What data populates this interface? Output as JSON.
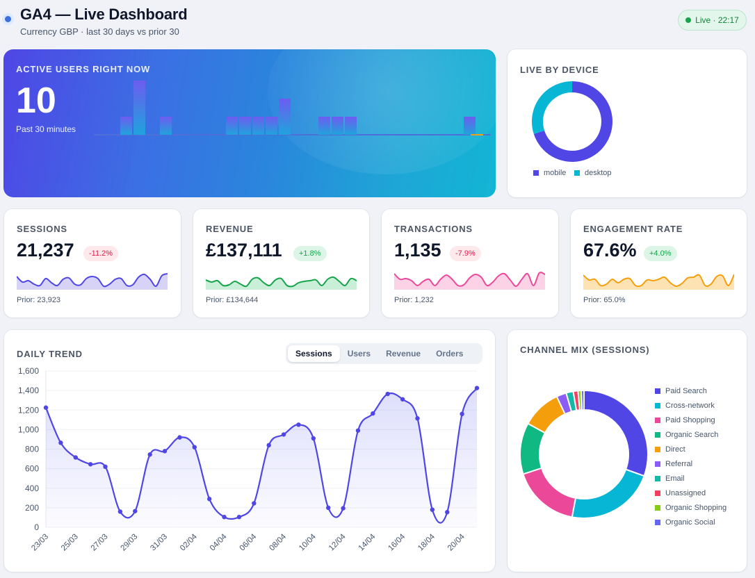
{
  "header": {
    "title": "GA4 — Live Dashboard",
    "subtitle": "Currency GBP · last 30 days vs prior 30",
    "live_badge": "Live · 22:17"
  },
  "hero": {
    "label": "ACTIVE USERS RIGHT NOW",
    "value": "10",
    "sub": "Past 30 minutes",
    "minute_bars": [
      0,
      0,
      1,
      3,
      0,
      1,
      0,
      0,
      0,
      0,
      1,
      1,
      1,
      1,
      2,
      0,
      0,
      1,
      1,
      1,
      0,
      0,
      0,
      0,
      0,
      0,
      0,
      0,
      1,
      0
    ]
  },
  "device": {
    "label": "LIVE BY DEVICE",
    "segments": [
      {
        "name": "mobile",
        "value": 7,
        "color": "#4f46e5"
      },
      {
        "name": "desktop",
        "value": 3,
        "color": "#06b6d4"
      }
    ]
  },
  "kpis": [
    {
      "label": "SESSIONS",
      "value": "21,237",
      "delta": "-11.2%",
      "trend": "neg",
      "prior": "Prior: 23,923",
      "color": "#4f46e5",
      "fill": "#d7d3f7",
      "spark": [
        0.75,
        0.35,
        0.45,
        0.2,
        0.1,
        0.6,
        0.3,
        0.1,
        0.55,
        0.65,
        0.2,
        0.15,
        0.6,
        0.75,
        0.6,
        0.05,
        0.2,
        0.55,
        0.6,
        0.1,
        0.15,
        0.7,
        0.9,
        0.55,
        0.05,
        0.8,
        0.95
      ]
    },
    {
      "label": "REVENUE",
      "value": "£137,111",
      "delta": "+1.8%",
      "trend": "pos",
      "prior": "Prior: £134,644",
      "color": "#16a34a",
      "fill": "#c9efd8",
      "spark": [
        0.5,
        0.35,
        0.45,
        0.1,
        0.15,
        0.4,
        0.2,
        0.05,
        0.55,
        0.65,
        0.3,
        0.1,
        0.5,
        0.6,
        0.1,
        0.05,
        0.3,
        0.4,
        0.45,
        0.5,
        0.1,
        0.55,
        0.7,
        0.4,
        0.1,
        0.6,
        0.45
      ]
    },
    {
      "label": "TRANSACTIONS",
      "value": "1,135",
      "delta": "-7.9%",
      "trend": "neg",
      "prior": "Prior: 1,232",
      "color": "#ec4899",
      "fill": "#fbd2e6",
      "spark": [
        0.95,
        0.55,
        0.6,
        0.45,
        0.1,
        0.4,
        0.55,
        0.1,
        0.55,
        0.85,
        0.55,
        0.1,
        0.15,
        0.65,
        0.9,
        0.7,
        0.1,
        0.35,
        0.8,
        0.95,
        0.5,
        0.05,
        0.55,
        0.95,
        0.1,
        1.0,
        0.9
      ]
    },
    {
      "label": "ENGAGEMENT RATE",
      "value": "67.6%",
      "delta": "+4.0%",
      "trend": "pos",
      "prior": "Prior: 65.0%",
      "color": "#f59e0b",
      "fill": "#fde3b4",
      "spark": [
        0.85,
        0.5,
        0.55,
        0.1,
        0.2,
        0.55,
        0.3,
        0.55,
        0.6,
        0.1,
        0.1,
        0.5,
        0.45,
        0.55,
        0.7,
        0.3,
        0.05,
        0.25,
        0.65,
        0.7,
        0.85,
        0.1,
        0.2,
        0.75,
        0.8,
        0.1,
        0.9
      ]
    }
  ],
  "trend": {
    "label": "DAILY TREND",
    "tabs": [
      "Sessions",
      "Users",
      "Revenue",
      "Orders"
    ],
    "active_tab": 0
  },
  "channels": {
    "label": "CHANNEL MIX (SESSIONS)",
    "items": [
      {
        "name": "Paid Search",
        "value": 30.5,
        "color": "#4f46e5"
      },
      {
        "name": "Cross-network",
        "value": 22.5,
        "color": "#06b6d4"
      },
      {
        "name": "Paid Shopping",
        "value": 17.0,
        "color": "#ec4899"
      },
      {
        "name": "Organic Search",
        "value": 13.0,
        "color": "#10b981"
      },
      {
        "name": "Direct",
        "value": 10.0,
        "color": "#f59e0b"
      },
      {
        "name": "Referral",
        "value": 2.5,
        "color": "#8b5cf6"
      },
      {
        "name": "Email",
        "value": 1.8,
        "color": "#14b8a6"
      },
      {
        "name": "Unassigned",
        "value": 1.2,
        "color": "#f43f5e"
      },
      {
        "name": "Organic Shopping",
        "value": 0.8,
        "color": "#84cc16"
      },
      {
        "name": "Organic Social",
        "value": 0.7,
        "color": "#6366f1"
      }
    ]
  },
  "chart_data": {
    "type": "line",
    "title": "DAILY TREND",
    "xlabel": "",
    "ylabel": "",
    "ylim": [
      0,
      1600
    ],
    "yticks": [
      0,
      200,
      400,
      600,
      800,
      1000,
      1200,
      1400,
      1600
    ],
    "ytick_labels": [
      "0",
      "200",
      "400",
      "600",
      "800",
      "1,000",
      "1,200",
      "1,400",
      "1,600"
    ],
    "grid": true,
    "categories": [
      "23/03",
      "24/03",
      "25/03",
      "26/03",
      "27/03",
      "28/03",
      "29/03",
      "30/03",
      "31/03",
      "01/04",
      "02/04",
      "03/04",
      "04/04",
      "05/04",
      "06/04",
      "07/04",
      "08/04",
      "09/04",
      "10/04",
      "11/04",
      "12/04",
      "13/04",
      "14/04",
      "15/04",
      "16/04",
      "17/04",
      "18/04",
      "19/04",
      "20/04",
      "21/04"
    ],
    "xtick_labels": [
      "23/03",
      "25/03",
      "27/03",
      "29/03",
      "31/03",
      "02/04",
      "04/04",
      "06/04",
      "08/04",
      "10/04",
      "12/04",
      "14/04",
      "16/04",
      "18/04",
      "20/04"
    ],
    "series": [
      {
        "name": "Sessions",
        "color": "#4f46e5",
        "values": [
          1225,
          865,
          715,
          645,
          620,
          160,
          165,
          745,
          780,
          920,
          820,
          290,
          105,
          105,
          245,
          840,
          950,
          1050,
          910,
          200,
          195,
          990,
          1165,
          1365,
          1310,
          1115,
          180,
          155,
          1160,
          1425
        ]
      }
    ]
  }
}
